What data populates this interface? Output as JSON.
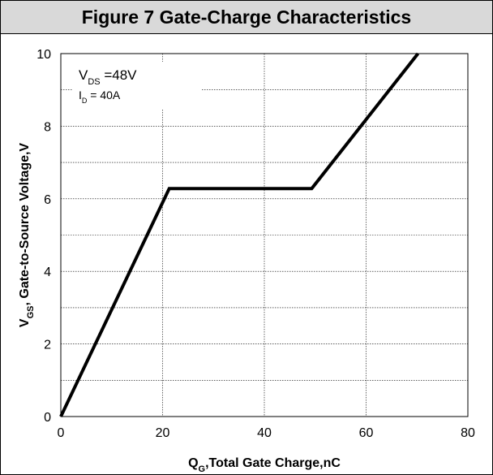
{
  "title": "Figure 7 Gate-Charge Characteristics",
  "chart_data": {
    "type": "line",
    "title": "Figure 7 Gate-Charge Characteristics",
    "xlabel": {
      "main": "Q",
      "sub": "G",
      "rest": ",Total Gate Charge,nC"
    },
    "ylabel": {
      "main": "V",
      "sub": "GS",
      "rest": ", Gate-to-Source Voltage,V"
    },
    "xlim": [
      0,
      80
    ],
    "ylim": [
      0,
      10
    ],
    "x_ticks": [
      0,
      20,
      40,
      60,
      80
    ],
    "y_ticks": [
      0,
      2,
      4,
      6,
      8,
      10
    ],
    "grid": true,
    "series": [
      {
        "x": [
          0,
          21.3,
          49.3,
          70.2
        ],
        "y": [
          0,
          6.28,
          6.28,
          10.0
        ]
      }
    ],
    "annotations": [
      {
        "main": "V",
        "sub": "DS",
        "rest": " =48V"
      },
      {
        "main": "I",
        "sub": "D",
        "rest": " = 40A"
      }
    ],
    "line_color": "#000000"
  }
}
